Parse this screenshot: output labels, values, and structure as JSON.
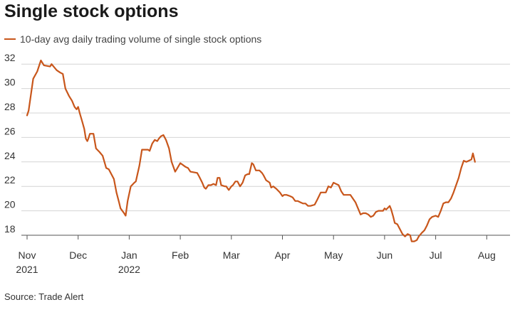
{
  "chart_data": {
    "type": "line",
    "title": "Single stock options",
    "xlabel": "",
    "ylabel": "",
    "ylim": [
      17,
      33
    ],
    "yticks": [
      18,
      20,
      22,
      24,
      26,
      28,
      30,
      32
    ],
    "grid": true,
    "legend_position": "top-left",
    "source": "Source: Trade Alert",
    "x_ticks": [
      {
        "month": 0,
        "label": "Nov",
        "year": "2021"
      },
      {
        "month": 1,
        "label": "Dec",
        "year": ""
      },
      {
        "month": 2,
        "label": "Jan",
        "year": "2022"
      },
      {
        "month": 3,
        "label": "Feb",
        "year": ""
      },
      {
        "month": 4,
        "label": "Mar",
        "year": ""
      },
      {
        "month": 5,
        "label": "Apr",
        "year": ""
      },
      {
        "month": 6,
        "label": "May",
        "year": ""
      },
      {
        "month": 7,
        "label": "Jun",
        "year": ""
      },
      {
        "month": 8,
        "label": "Jul",
        "year": ""
      },
      {
        "month": 9,
        "label": "Aug",
        "year": ""
      }
    ],
    "series": [
      {
        "name": "10-day avg daily trading volume of single stock options",
        "color": "#c8561b",
        "points": [
          [
            0.0,
            27.8
          ],
          [
            0.03,
            28.2
          ],
          [
            0.12,
            30.8
          ],
          [
            0.2,
            31.4
          ],
          [
            0.27,
            32.3
          ],
          [
            0.33,
            31.9
          ],
          [
            0.45,
            31.8
          ],
          [
            0.48,
            32.0
          ],
          [
            0.58,
            31.5
          ],
          [
            0.65,
            31.3
          ],
          [
            0.7,
            31.2
          ],
          [
            0.75,
            30.0
          ],
          [
            0.82,
            29.4
          ],
          [
            0.88,
            29.0
          ],
          [
            0.93,
            28.5
          ],
          [
            0.97,
            28.3
          ],
          [
            1.0,
            28.5
          ],
          [
            1.03,
            28.0
          ],
          [
            1.08,
            27.3
          ],
          [
            1.12,
            26.7
          ],
          [
            1.15,
            25.9
          ],
          [
            1.18,
            25.7
          ],
          [
            1.2,
            25.9
          ],
          [
            1.23,
            26.3
          ],
          [
            1.3,
            26.3
          ],
          [
            1.35,
            25.1
          ],
          [
            1.42,
            24.8
          ],
          [
            1.48,
            24.5
          ],
          [
            1.55,
            23.5
          ],
          [
            1.6,
            23.4
          ],
          [
            1.65,
            23.0
          ],
          [
            1.7,
            22.6
          ],
          [
            1.75,
            21.5
          ],
          [
            1.8,
            20.7
          ],
          [
            1.83,
            20.2
          ],
          [
            1.9,
            19.8
          ],
          [
            1.93,
            19.6
          ],
          [
            1.97,
            20.8
          ],
          [
            2.03,
            22.0
          ],
          [
            2.1,
            22.3
          ],
          [
            2.13,
            22.4
          ],
          [
            2.2,
            23.7
          ],
          [
            2.25,
            25.0
          ],
          [
            2.3,
            25.0
          ],
          [
            2.37,
            25.0
          ],
          [
            2.4,
            24.9
          ],
          [
            2.45,
            25.5
          ],
          [
            2.5,
            25.8
          ],
          [
            2.55,
            25.7
          ],
          [
            2.58,
            25.9
          ],
          [
            2.62,
            26.1
          ],
          [
            2.67,
            26.2
          ],
          [
            2.72,
            25.8
          ],
          [
            2.78,
            25.1
          ],
          [
            2.83,
            24.0
          ],
          [
            2.9,
            23.2
          ],
          [
            2.93,
            23.4
          ],
          [
            3.0,
            23.9
          ],
          [
            3.1,
            23.6
          ],
          [
            3.15,
            23.5
          ],
          [
            3.2,
            23.2
          ],
          [
            3.33,
            23.1
          ],
          [
            3.37,
            22.8
          ],
          [
            3.43,
            22.3
          ],
          [
            3.47,
            21.9
          ],
          [
            3.5,
            21.8
          ],
          [
            3.55,
            22.1
          ],
          [
            3.6,
            22.1
          ],
          [
            3.65,
            22.2
          ],
          [
            3.7,
            22.1
          ],
          [
            3.73,
            22.7
          ],
          [
            3.77,
            22.7
          ],
          [
            3.8,
            22.1
          ],
          [
            3.87,
            22.0
          ],
          [
            3.9,
            22.0
          ],
          [
            3.95,
            21.7
          ],
          [
            4.0,
            22.0
          ],
          [
            4.03,
            22.1
          ],
          [
            4.08,
            22.4
          ],
          [
            4.12,
            22.4
          ],
          [
            4.17,
            22.0
          ],
          [
            4.22,
            22.3
          ],
          [
            4.27,
            22.9
          ],
          [
            4.32,
            23.0
          ],
          [
            4.35,
            23.0
          ],
          [
            4.4,
            23.9
          ],
          [
            4.43,
            23.8
          ],
          [
            4.48,
            23.3
          ],
          [
            4.55,
            23.3
          ],
          [
            4.6,
            23.1
          ],
          [
            4.63,
            22.9
          ],
          [
            4.68,
            22.5
          ],
          [
            4.75,
            22.3
          ],
          [
            4.78,
            21.9
          ],
          [
            4.82,
            22.0
          ],
          [
            4.88,
            21.8
          ],
          [
            4.95,
            21.5
          ],
          [
            5.0,
            21.2
          ],
          [
            5.03,
            21.3
          ],
          [
            5.08,
            21.3
          ],
          [
            5.15,
            21.2
          ],
          [
            5.2,
            21.1
          ],
          [
            5.25,
            20.8
          ],
          [
            5.3,
            20.8
          ],
          [
            5.35,
            20.7
          ],
          [
            5.4,
            20.6
          ],
          [
            5.45,
            20.6
          ],
          [
            5.5,
            20.4
          ],
          [
            5.55,
            20.4
          ],
          [
            5.63,
            20.5
          ],
          [
            5.68,
            20.9
          ],
          [
            5.75,
            21.5
          ],
          [
            5.8,
            21.5
          ],
          [
            5.85,
            21.5
          ],
          [
            5.9,
            22.0
          ],
          [
            5.95,
            21.9
          ],
          [
            6.0,
            22.3
          ],
          [
            6.05,
            22.2
          ],
          [
            6.1,
            22.1
          ],
          [
            6.15,
            21.6
          ],
          [
            6.2,
            21.3
          ],
          [
            6.25,
            21.3
          ],
          [
            6.33,
            21.3
          ],
          [
            6.38,
            21.0
          ],
          [
            6.43,
            20.7
          ],
          [
            6.48,
            20.2
          ],
          [
            6.53,
            19.7
          ],
          [
            6.58,
            19.8
          ],
          [
            6.63,
            19.8
          ],
          [
            6.68,
            19.7
          ],
          [
            6.73,
            19.5
          ],
          [
            6.78,
            19.6
          ],
          [
            6.83,
            19.9
          ],
          [
            6.88,
            20.0
          ],
          [
            6.93,
            20.0
          ],
          [
            6.97,
            20.0
          ],
          [
            7.0,
            20.2
          ],
          [
            7.03,
            20.1
          ],
          [
            7.1,
            20.4
          ],
          [
            7.13,
            20.1
          ],
          [
            7.17,
            19.5
          ],
          [
            7.2,
            19.0
          ],
          [
            7.25,
            18.9
          ],
          [
            7.3,
            18.5
          ],
          [
            7.35,
            18.1
          ],
          [
            7.4,
            17.9
          ],
          [
            7.45,
            18.1
          ],
          [
            7.5,
            18.0
          ],
          [
            7.53,
            17.5
          ],
          [
            7.58,
            17.5
          ],
          [
            7.63,
            17.6
          ],
          [
            7.67,
            17.9
          ],
          [
            7.73,
            18.2
          ],
          [
            7.78,
            18.4
          ],
          [
            7.83,
            18.8
          ],
          [
            7.88,
            19.3
          ],
          [
            7.93,
            19.5
          ],
          [
            8.0,
            19.6
          ],
          [
            8.05,
            19.5
          ],
          [
            8.1,
            20.0
          ],
          [
            8.15,
            20.6
          ],
          [
            8.2,
            20.7
          ],
          [
            8.25,
            20.7
          ],
          [
            8.3,
            21.0
          ],
          [
            8.35,
            21.5
          ],
          [
            8.4,
            22.1
          ],
          [
            8.45,
            22.7
          ],
          [
            8.5,
            23.5
          ],
          [
            8.55,
            24.1
          ],
          [
            8.6,
            24.0
          ],
          [
            8.65,
            24.1
          ],
          [
            8.7,
            24.2
          ],
          [
            8.73,
            24.7
          ],
          [
            8.77,
            24.0
          ]
        ]
      }
    ]
  }
}
